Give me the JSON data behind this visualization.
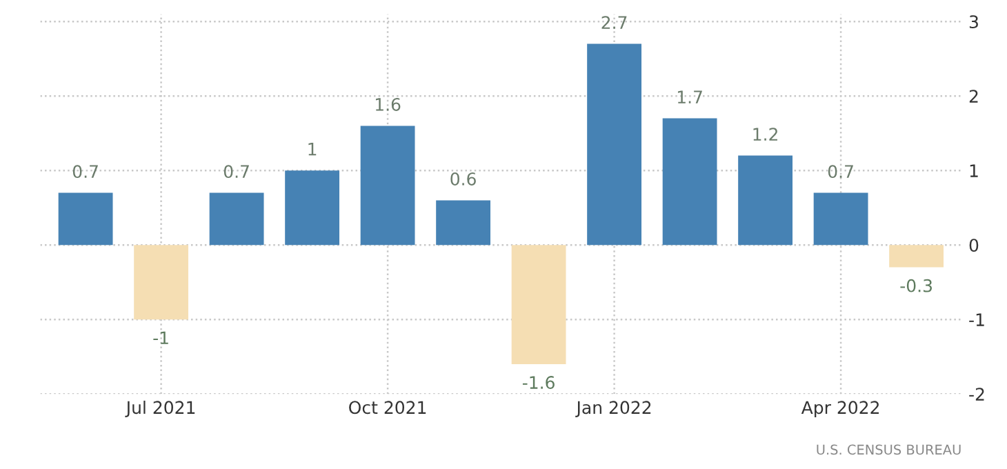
{
  "chart_data": {
    "type": "bar",
    "categories": [
      null,
      "Jul 2021",
      null,
      null,
      "Oct 2021",
      null,
      null,
      "Jan 2022",
      null,
      null,
      "Apr 2022",
      null
    ],
    "values": [
      0.7,
      -1,
      0.7,
      1,
      1.6,
      0.6,
      -1.6,
      2.7,
      1.7,
      1.2,
      0.7,
      -0.3
    ],
    "colors": [
      "#4682b4",
      "#f5deb3",
      "#4682b4",
      "#4682b4",
      "#4682b4",
      "#4682b4",
      "#f5deb3",
      "#4682b4",
      "#4682b4",
      "#4682b4",
      "#4682b4",
      "#f5deb3"
    ],
    "ylim": [
      -2,
      3.1
    ],
    "yticks": [
      -2,
      -1,
      0,
      1,
      2,
      3
    ],
    "grid": true,
    "data_labels": true,
    "annotations": [
      "U.S. CENSUS BUREAU"
    ]
  }
}
